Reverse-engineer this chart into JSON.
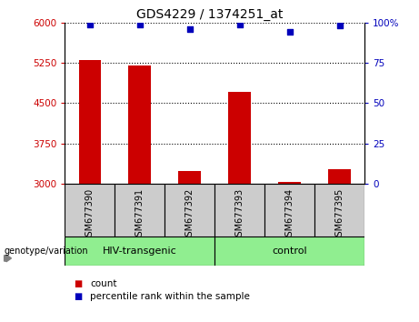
{
  "title": "GDS4229 / 1374251_at",
  "samples": [
    "GSM677390",
    "GSM677391",
    "GSM677392",
    "GSM677393",
    "GSM677394",
    "GSM677395"
  ],
  "bar_values": [
    5300,
    5200,
    3230,
    4700,
    3030,
    3260
  ],
  "bar_baseline": 3000,
  "bar_color": "#cc0000",
  "percentile_values": [
    99,
    99,
    96,
    99,
    94,
    98
  ],
  "percentile_color": "#0000bb",
  "left_ylim": [
    3000,
    6000
  ],
  "left_yticks": [
    3000,
    3750,
    4500,
    5250,
    6000
  ],
  "right_ylim": [
    0,
    100
  ],
  "right_yticks": [
    0,
    25,
    50,
    75,
    100
  ],
  "right_yticklabels": [
    "0",
    "25",
    "50",
    "75",
    "100%"
  ],
  "groups": [
    {
      "label": "HIV-transgenic",
      "samples": [
        0,
        1,
        2
      ],
      "color": "#90EE90"
    },
    {
      "label": "control",
      "samples": [
        3,
        4,
        5
      ],
      "color": "#90EE90"
    }
  ],
  "group_label_prefix": "genotype/variation",
  "legend_count_label": "count",
  "legend_percentile_label": "percentile rank within the sample",
  "bar_width": 0.45,
  "tick_label_color_left": "#cc0000",
  "tick_label_color_right": "#0000bb",
  "xlabel_area_bg": "#cccccc",
  "plot_bg": "#ffffff"
}
